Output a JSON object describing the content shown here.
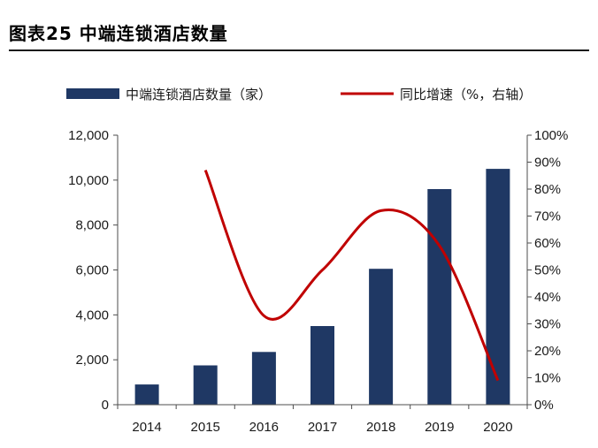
{
  "figure_title": "图表25 中端连锁酒店数量",
  "chart_data": {
    "type": "bar",
    "categories": [
      "2014",
      "2015",
      "2016",
      "2017",
      "2018",
      "2019",
      "2020"
    ],
    "series": [
      {
        "name": "中端连锁酒店数量（家）",
        "type": "bar",
        "axis": "left",
        "values": [
          900,
          1750,
          2350,
          3500,
          6050,
          9600,
          10500
        ]
      },
      {
        "name": "同比增速（%，右轴）",
        "type": "line",
        "axis": "right",
        "values": [
          null,
          87,
          33,
          50,
          72,
          59,
          9
        ]
      }
    ],
    "y_left": {
      "min": 0,
      "max": 12000,
      "step": 2000,
      "tick_labels": [
        "0",
        "2,000",
        "4,000",
        "6,000",
        "8,000",
        "10,000",
        "12,000"
      ]
    },
    "y_right": {
      "min": 0,
      "max": 100,
      "step": 10,
      "tick_labels": [
        "0%",
        "10%",
        "20%",
        "30%",
        "40%",
        "50%",
        "60%",
        "70%",
        "80%",
        "90%",
        "100%"
      ]
    },
    "legend_position": "top",
    "grid": false,
    "colors": {
      "bar": "#1f3864",
      "line": "#c00000"
    }
  }
}
